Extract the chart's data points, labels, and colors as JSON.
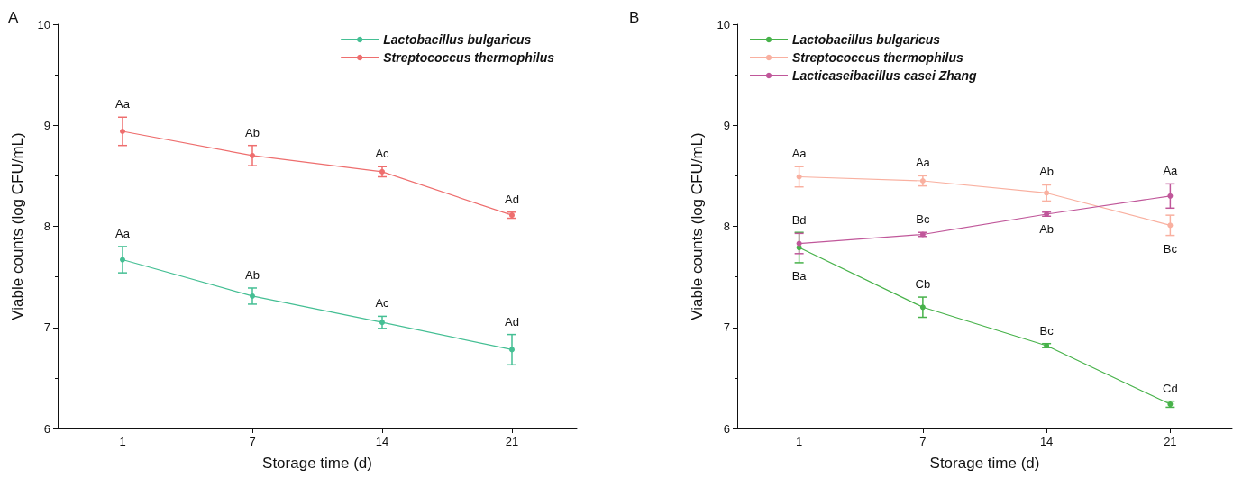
{
  "chart_data": [
    {
      "type": "line",
      "title": "A",
      "xlabel": "Storage time (d)",
      "ylabel": "Viable counts (log CFU/mL)",
      "categories": [
        "1",
        "7",
        "14",
        "21"
      ],
      "ylim": [
        6,
        10
      ],
      "yticks": [
        6,
        7,
        8,
        9,
        10
      ],
      "legend": "top right",
      "marker": "circle",
      "line_style": "solid",
      "grid": false,
      "series": [
        {
          "name": "Lactobacillus bulgaricus",
          "color": "#45bf94",
          "values": [
            7.67,
            7.31,
            7.05,
            6.78
          ],
          "errors": [
            0.13,
            0.08,
            0.06,
            0.15
          ],
          "value_labels": [
            "Aa",
            "Ab",
            "Ac",
            "Ad"
          ]
        },
        {
          "name": "Streptococcus thermophilus",
          "color": "#ee6e6e",
          "values": [
            8.94,
            8.7,
            8.54,
            8.11
          ],
          "errors": [
            0.14,
            0.1,
            0.05,
            0.03
          ],
          "value_labels": [
            "Aa",
            "Ab",
            "Ac",
            "Ad"
          ]
        }
      ]
    },
    {
      "type": "line",
      "title": "B",
      "xlabel": "Storage time (d)",
      "ylabel": "Viable counts (log CFU/mL)",
      "categories": [
        "1",
        "7",
        "14",
        "21"
      ],
      "ylim": [
        6,
        10
      ],
      "yticks": [
        6,
        7,
        8,
        9,
        10
      ],
      "legend": "top left",
      "marker": "circle",
      "line_style": "solid",
      "grid": false,
      "series": [
        {
          "name": "Lactobacillus bulgaricus",
          "color": "#47b24a",
          "values": [
            7.79,
            7.2,
            6.82,
            6.24
          ],
          "errors": [
            0.15,
            0.1,
            0.02,
            0.03
          ],
          "value_labels": [
            "Ba",
            "Cb",
            "Bc",
            "Cd"
          ]
        },
        {
          "name": "Streptococcus thermophilus",
          "color": "#f9b0a0",
          "values": [
            8.49,
            8.45,
            8.33,
            8.01
          ],
          "errors": [
            0.1,
            0.05,
            0.08,
            0.1
          ],
          "value_labels": [
            "Aa",
            "Aa",
            "Ab",
            "Bc"
          ]
        },
        {
          "name": "Lacticaseibacillus casei Zhang",
          "color": "#c0579a",
          "values": [
            7.83,
            7.92,
            8.12,
            8.3
          ],
          "errors": [
            0.1,
            0.02,
            0.02,
            0.12
          ],
          "value_labels": [
            "Bd",
            "Bc",
            "Ab",
            "Aa"
          ]
        }
      ]
    }
  ]
}
